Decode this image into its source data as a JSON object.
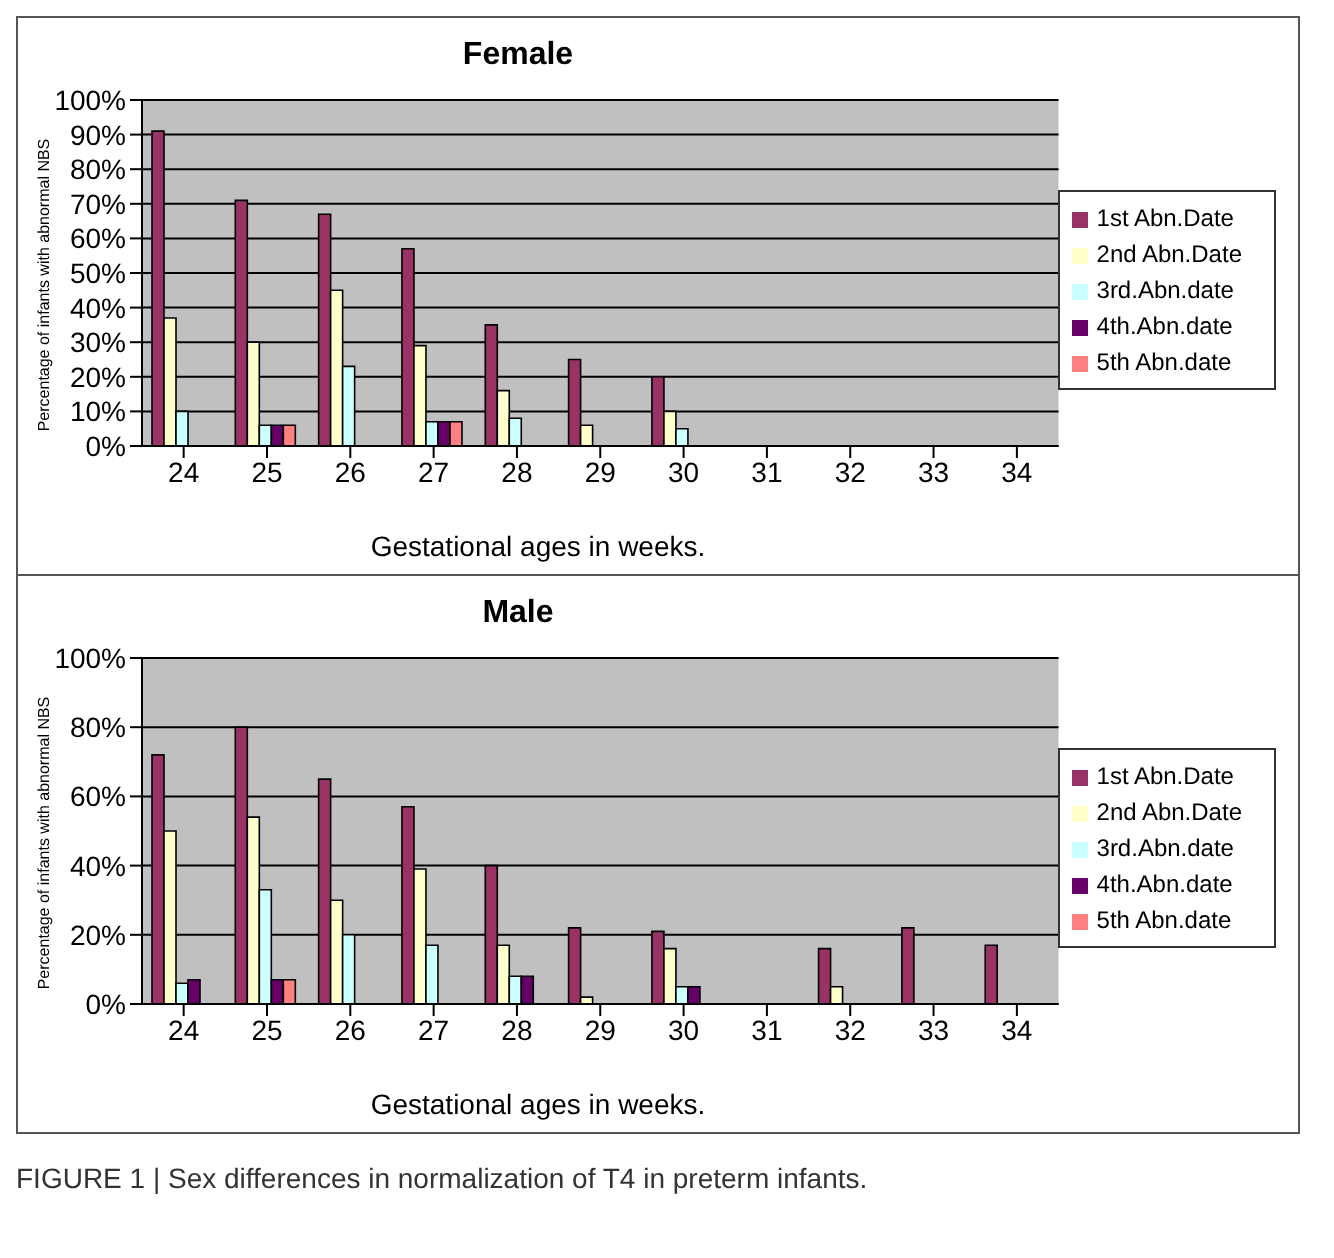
{
  "chart_data": [
    {
      "type": "bar",
      "title": "Female",
      "xlabel": "Gestational ages in weeks.",
      "ylabel": "Percentage of infants with abnormal NBS",
      "categories": [
        "24",
        "25",
        "26",
        "27",
        "28",
        "29",
        "30",
        "31",
        "32",
        "33",
        "34"
      ],
      "series": [
        {
          "name": "1st Abn.Date",
          "color": "#993366",
          "values": [
            91,
            71,
            67,
            57,
            35,
            25,
            20,
            null,
            null,
            null,
            null
          ]
        },
        {
          "name": "2nd Abn.Date",
          "color": "#ffffcc",
          "values": [
            37,
            30,
            45,
            29,
            16,
            6,
            10,
            null,
            null,
            null,
            null
          ]
        },
        {
          "name": "3rd.Abn.date",
          "color": "#ccffff",
          "values": [
            10,
            6,
            23,
            7,
            8,
            null,
            5,
            null,
            null,
            null,
            null
          ]
        },
        {
          "name": "4th.Abn.date",
          "color": "#660066",
          "values": [
            null,
            6,
            null,
            7,
            null,
            null,
            null,
            null,
            null,
            null,
            null
          ]
        },
        {
          "name": "5th Abn.date",
          "color": "#ff8080",
          "values": [
            null,
            6,
            null,
            7,
            null,
            null,
            null,
            null,
            null,
            null,
            null
          ]
        }
      ],
      "ylim": [
        0,
        100
      ],
      "yticks": [
        {
          "value": 0,
          "label": "0%"
        },
        {
          "value": 10,
          "label": "10%"
        },
        {
          "value": 20,
          "label": "20%"
        },
        {
          "value": 30,
          "label": "30%"
        },
        {
          "value": 40,
          "label": "40%"
        },
        {
          "value": 50,
          "label": "50%"
        },
        {
          "value": 60,
          "label": "60%"
        },
        {
          "value": 70,
          "label": "70%"
        },
        {
          "value": 80,
          "label": "80%"
        },
        {
          "value": 90,
          "label": "90%"
        },
        {
          "value": 100,
          "label": "100%"
        }
      ],
      "grid": "y",
      "legend": "right"
    },
    {
      "type": "bar",
      "title": "Male",
      "xlabel": "Gestational ages in weeks.",
      "ylabel": "Percentage of infants with abnormal NBS",
      "categories": [
        "24",
        "25",
        "26",
        "27",
        "28",
        "29",
        "30",
        "31",
        "32",
        "33",
        "34"
      ],
      "series": [
        {
          "name": "1st Abn.Date",
          "color": "#993366",
          "values": [
            72,
            80,
            65,
            57,
            40,
            22,
            21,
            null,
            16,
            22,
            17
          ]
        },
        {
          "name": "2nd Abn.Date",
          "color": "#ffffcc",
          "values": [
            50,
            54,
            30,
            39,
            17,
            2,
            16,
            null,
            5,
            null,
            null
          ]
        },
        {
          "name": "3rd.Abn.date",
          "color": "#ccffff",
          "values": [
            6,
            33,
            20,
            17,
            8,
            null,
            5,
            null,
            null,
            null,
            null
          ]
        },
        {
          "name": "4th.Abn.date",
          "color": "#660066",
          "values": [
            7,
            7,
            null,
            null,
            8,
            null,
            5,
            null,
            null,
            null,
            null
          ]
        },
        {
          "name": "5th Abn.date",
          "color": "#ff8080",
          "values": [
            null,
            7,
            null,
            null,
            null,
            null,
            null,
            null,
            null,
            null,
            null
          ]
        }
      ],
      "ylim": [
        0,
        100
      ],
      "yticks": [
        {
          "value": 0,
          "label": "0%"
        },
        {
          "value": 20,
          "label": "20%"
        },
        {
          "value": 40,
          "label": "40%"
        },
        {
          "value": 60,
          "label": "60%"
        },
        {
          "value": 80,
          "label": "80%"
        },
        {
          "value": 100,
          "label": "100%"
        }
      ],
      "grid": "y",
      "legend": "right",
      "annotations": [
        "FIGURE 1 | Sex differences in normalization of T4 in preterm infants."
      ]
    }
  ]
}
